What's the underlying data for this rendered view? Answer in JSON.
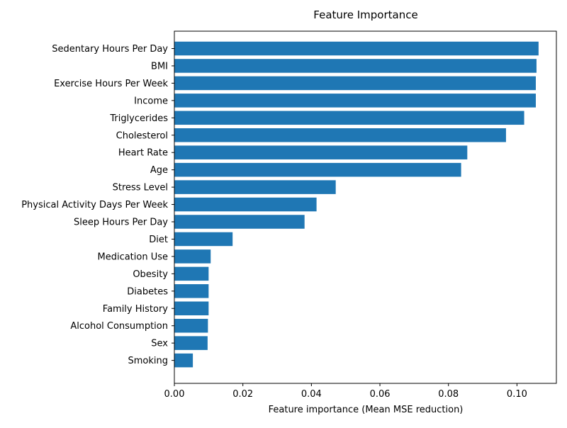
{
  "chart_data": {
    "type": "bar",
    "orientation": "horizontal",
    "title": "Feature Importance",
    "xlabel": "Feature importance (Mean MSE reduction)",
    "ylabel": "",
    "xlim": [
      0,
      0.1115
    ],
    "xticks": [
      "0.00",
      "0.02",
      "0.04",
      "0.06",
      "0.08",
      "0.10"
    ],
    "xtick_values": [
      0,
      0.02,
      0.04,
      0.06,
      0.08,
      0.1
    ],
    "bar_color": "#1f77b4",
    "categories": [
      "Sedentary Hours Per Day",
      "BMI",
      "Exercise Hours Per Week",
      "Income",
      "Triglycerides",
      "Cholesterol",
      "Heart Rate",
      "Age",
      "Stress Level",
      "Physical Activity Days Per Week",
      "Sleep Hours Per Day",
      "Diet",
      "Medication Use",
      "Obesity",
      "Diabetes",
      "Family History",
      "Alcohol Consumption",
      "Sex",
      "Smoking"
    ],
    "values": [
      0.1063,
      0.1057,
      0.1055,
      0.1055,
      0.1021,
      0.0968,
      0.0855,
      0.0837,
      0.0471,
      0.0415,
      0.038,
      0.017,
      0.0106,
      0.01,
      0.01,
      0.01,
      0.0098,
      0.0097,
      0.0054
    ],
    "grid": false,
    "legend": "none"
  }
}
